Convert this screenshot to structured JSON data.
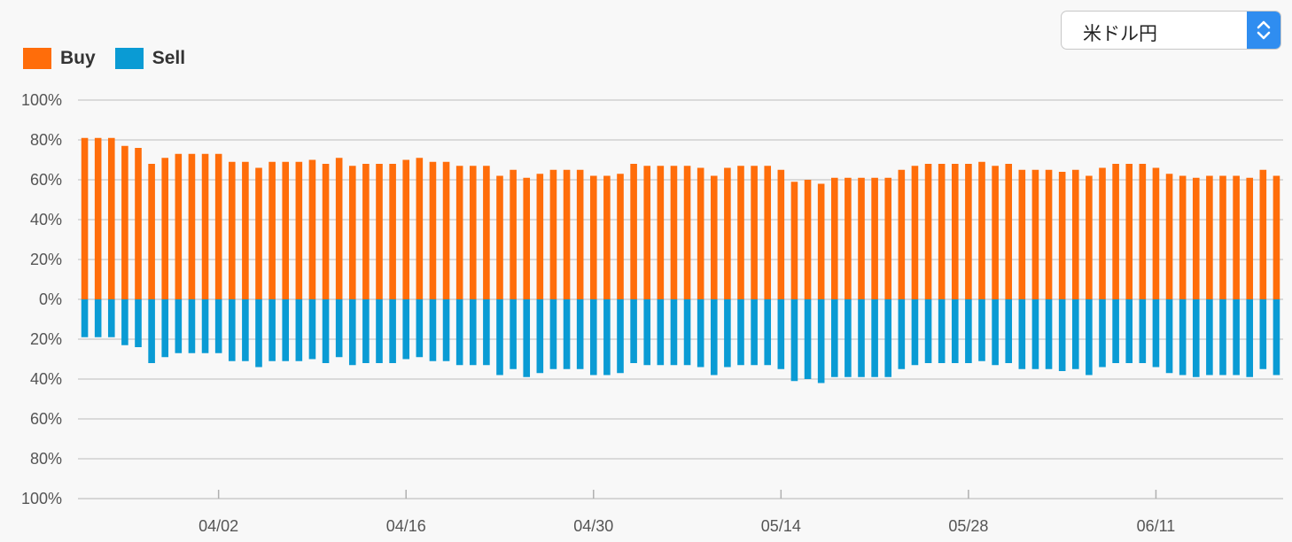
{
  "legend": [
    {
      "label": "Buy",
      "color": "#ff6d0a"
    },
    {
      "label": "Sell",
      "color": "#0a9bd4"
    }
  ],
  "selector": {
    "value": "米ドル円",
    "icon": "updown-chevron-icon"
  },
  "chart_data": {
    "type": "bar",
    "stacked": "diverging",
    "y_tick_labels": [
      "100%",
      "80%",
      "60%",
      "40%",
      "20%",
      "0%",
      "20%",
      "40%",
      "60%",
      "80%",
      "100%"
    ],
    "ylim": [
      -100,
      100
    ],
    "x_tick_labels": [
      "04/02",
      "04/16",
      "04/30",
      "05/14",
      "05/28",
      "06/11"
    ],
    "x_tick_positions": [
      10,
      24,
      38,
      52,
      66,
      80
    ],
    "grid": true,
    "legend_position": "top-left",
    "series": [
      {
        "name": "Buy",
        "color": "#ff6d0a",
        "values": [
          81,
          81,
          81,
          77,
          76,
          68,
          71,
          73,
          73,
          73,
          73,
          69,
          69,
          66,
          69,
          69,
          69,
          70,
          68,
          71,
          67,
          68,
          68,
          68,
          70,
          71,
          69,
          69,
          67,
          67,
          67,
          62,
          65,
          61,
          63,
          65,
          65,
          65,
          62,
          62,
          63,
          68,
          67,
          67,
          67,
          67,
          66,
          62,
          66,
          67,
          67,
          67,
          65,
          59,
          60,
          58,
          61,
          61,
          61,
          61,
          61,
          65,
          67,
          68,
          68,
          68,
          68,
          69,
          67,
          68,
          65,
          65,
          65,
          64,
          65,
          62,
          66,
          68,
          68,
          68,
          66,
          63,
          62,
          61,
          62,
          62,
          62,
          61,
          65,
          62
        ]
      },
      {
        "name": "Sell",
        "color": "#0a9bd4",
        "values": [
          19,
          19,
          19,
          23,
          24,
          32,
          29,
          27,
          27,
          27,
          27,
          31,
          31,
          34,
          31,
          31,
          31,
          30,
          32,
          29,
          33,
          32,
          32,
          32,
          30,
          29,
          31,
          31,
          33,
          33,
          33,
          38,
          35,
          39,
          37,
          35,
          35,
          35,
          38,
          38,
          37,
          32,
          33,
          33,
          33,
          33,
          34,
          38,
          34,
          33,
          33,
          33,
          35,
          41,
          40,
          42,
          39,
          39,
          39,
          39,
          39,
          35,
          33,
          32,
          32,
          32,
          32,
          31,
          33,
          32,
          35,
          35,
          35,
          36,
          35,
          38,
          34,
          32,
          32,
          32,
          34,
          37,
          38,
          39,
          38,
          38,
          38,
          39,
          35,
          38
        ]
      }
    ]
  }
}
